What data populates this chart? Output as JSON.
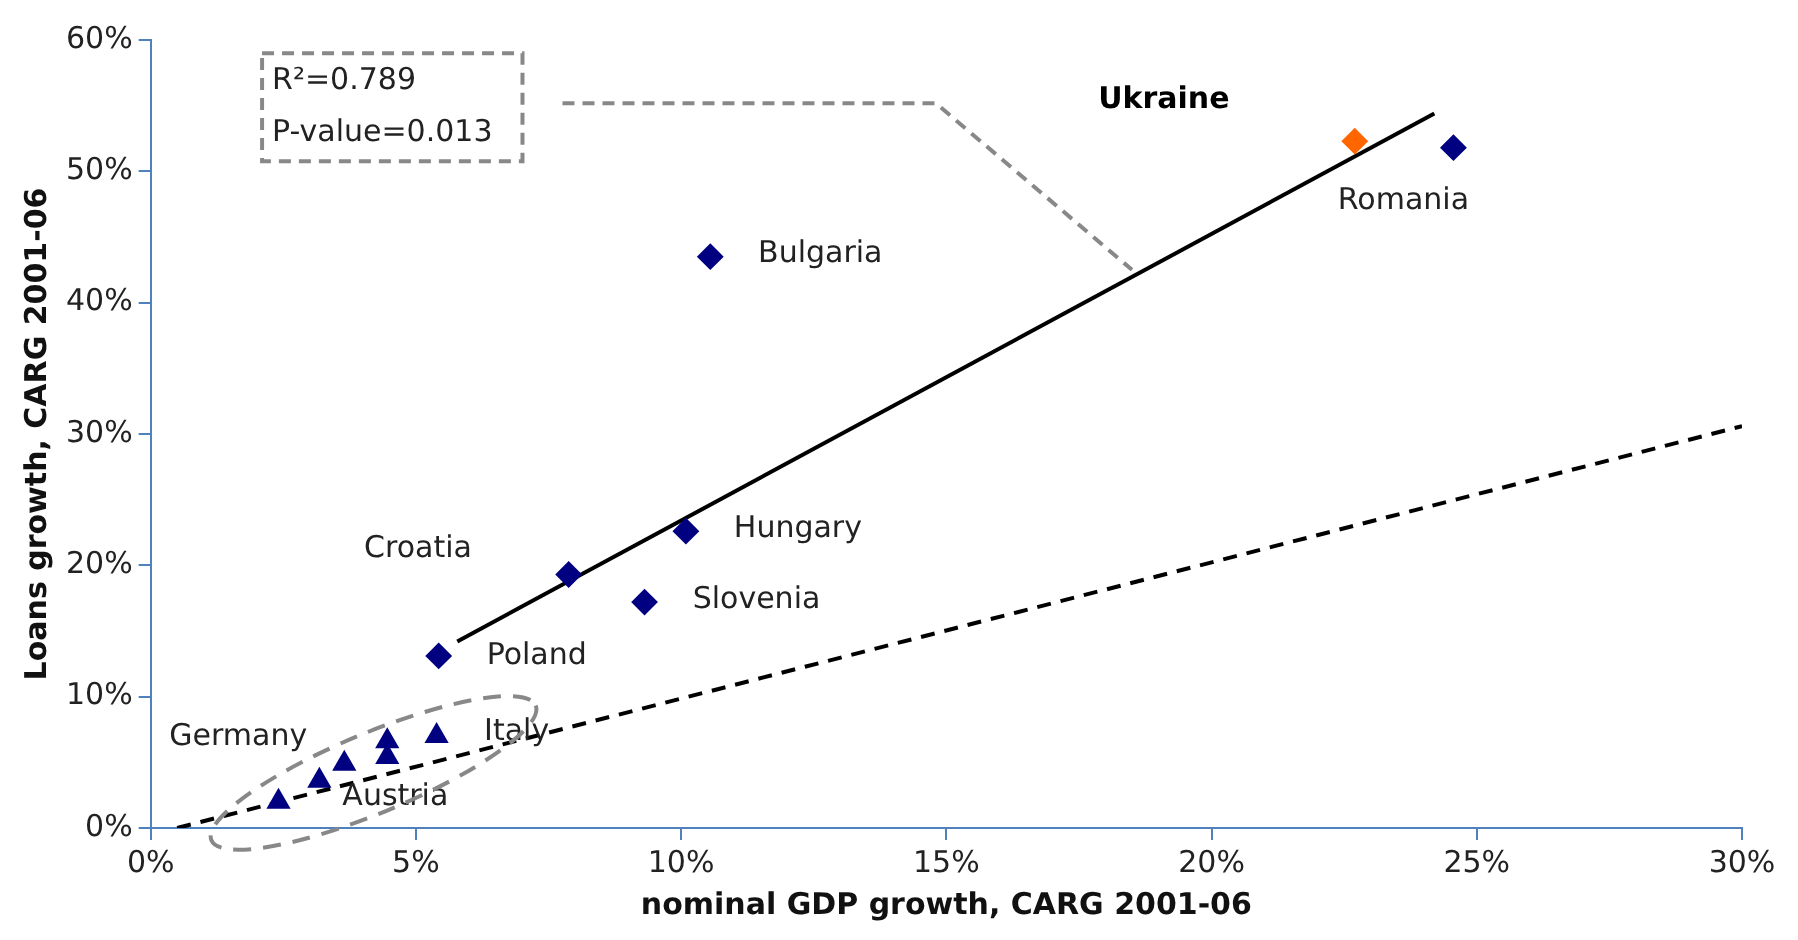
{
  "chart_data": {
    "type": "scatter",
    "xlabel": "nominal GDP growth, CARG 2001-06",
    "ylabel": "Loans growth, CARG 2001-06",
    "xlim": [
      0,
      30
    ],
    "ylim": [
      0,
      60
    ],
    "xticks": [
      {
        "value": 0,
        "label": "0%"
      },
      {
        "value": 5,
        "label": "5%"
      },
      {
        "value": 10,
        "label": "10%"
      },
      {
        "value": 15,
        "label": "15%"
      },
      {
        "value": 20,
        "label": "20%"
      },
      {
        "value": 25,
        "label": "25%"
      },
      {
        "value": 30,
        "label": "30%"
      }
    ],
    "yticks": [
      {
        "value": 0,
        "label": "0%"
      },
      {
        "value": 10,
        "label": "10%"
      },
      {
        "value": 20,
        "label": "20%"
      },
      {
        "value": 30,
        "label": "30%"
      },
      {
        "value": 40,
        "label": "40%"
      },
      {
        "value": 50,
        "label": "50%"
      },
      {
        "value": 60,
        "label": "60%"
      }
    ],
    "grid": false,
    "legend": false,
    "series": [
      {
        "type": "scatter",
        "marker": "diamond",
        "x": [
          10.55,
          24.56,
          22.7,
          10.09,
          7.88,
          9.31,
          5.43
        ],
        "values": [
          43.5,
          51.8,
          52.3,
          22.6,
          19.3,
          17.2,
          13.1
        ],
        "colors": [
          "#000080",
          "#000080",
          "#ff6600",
          "#000080",
          "#000080",
          "#000080",
          "#000080"
        ]
      },
      {
        "type": "scatter",
        "marker": "triangle",
        "color": "#000080",
        "x": [
          2.41,
          3.18,
          3.65,
          4.46,
          4.46,
          5.39
        ],
        "values": [
          2.0,
          3.6,
          4.9,
          6.6,
          5.4,
          7.0
        ]
      },
      {
        "type": "line",
        "line_style": "solid",
        "color": "#000000",
        "x": [
          5.78,
          24.2
        ],
        "values": [
          14.2,
          54.4
        ]
      },
      {
        "type": "line",
        "line_style": "dashed",
        "color": "#000000",
        "x": [
          0.5,
          30
        ],
        "values": [
          0,
          30.6
        ]
      }
    ],
    "annotations": [
      "R²=0.789",
      "P-value=0.013",
      {
        "text": "Bulgaria",
        "x": 10.55,
        "y": 43.5
      },
      "Ukraine",
      {
        "text": "Romania",
        "x": 24.56,
        "y": 51.8
      },
      {
        "text": "Hungary",
        "x": 10.09,
        "y": 22.6
      },
      "Croatia",
      {
        "text": "Slovenia",
        "x": 9.31,
        "y": 17.2
      },
      {
        "text": "Poland",
        "x": 5.43,
        "y": 13.1
      },
      {
        "text": "Germany",
        "x": 3.65,
        "y": 4.9
      },
      {
        "text": "Italy",
        "x": 5.39,
        "y": 7.0
      },
      {
        "text": "Austria",
        "x": 3.18,
        "y": 3.6
      }
    ]
  }
}
